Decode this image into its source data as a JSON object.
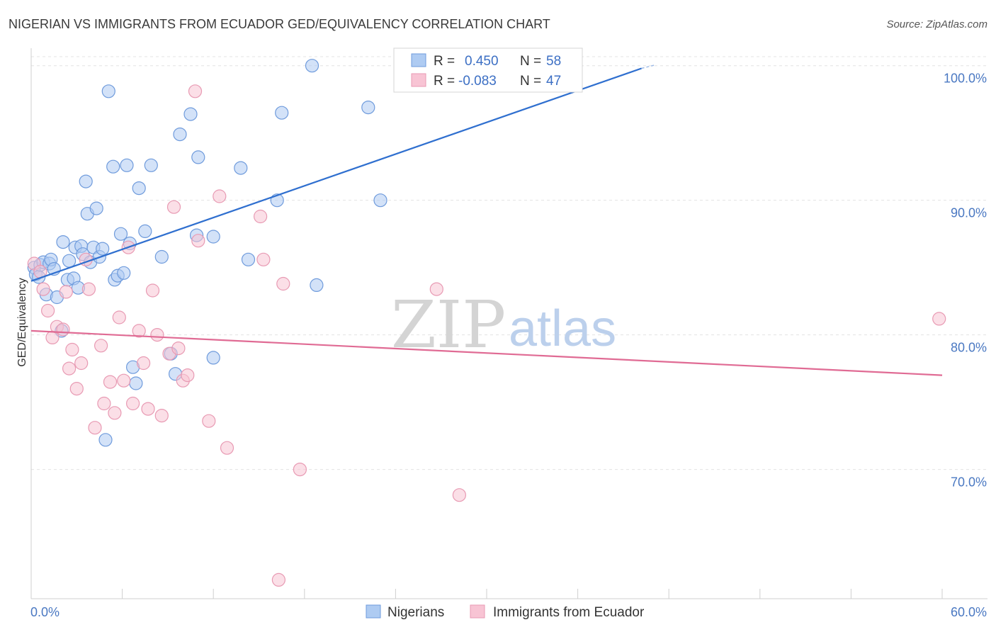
{
  "header": {
    "title": "NIGERIAN VS IMMIGRANTS FROM ECUADOR GED/EQUIVALENCY CORRELATION CHART",
    "source": "Source: ZipAtlas.com"
  },
  "watermark": {
    "zip": "ZIP",
    "atlas": "atlas"
  },
  "legend": {
    "r_label": "R =",
    "n_label": "N =",
    "nigerians": {
      "r": "0.450",
      "n": "58"
    },
    "ecuador": {
      "r": "-0.083",
      "n": "47"
    }
  },
  "colors": {
    "nigerians_fill": "#aecbf2",
    "nigerians_stroke": "#6f9bdc",
    "nigerians_line": "#2f6fcf",
    "ecuador_fill": "#f8c4d4",
    "ecuador_stroke": "#e89ab3",
    "ecuador_line": "#e06b94",
    "grid": "#e3e3e3",
    "tick_text": "#4a78c2"
  },
  "chart_data": {
    "type": "scatter",
    "title": "NIGERIAN VS IMMIGRANTS FROM ECUADOR GED/EQUIVALENCY CORRELATION CHART",
    "xlabel": "",
    "ylabel": "GED/Equivalency",
    "xlim": [
      0,
      60
    ],
    "ylim": [
      60.4,
      101.3
    ],
    "x_tick_labels": [
      "0.0%",
      "60.0%"
    ],
    "y_ticks": [
      70,
      80,
      90,
      100
    ],
    "y_tick_labels": [
      "70.0%",
      "80.0%",
      "90.0%",
      "100.0%"
    ],
    "grid": true,
    "legend_position": "top-center",
    "series": [
      {
        "name": "Nigerians",
        "r": 0.45,
        "n": 58,
        "trend": {
          "x": [
            0,
            40.2
          ],
          "y": [
            84.0,
            99.8
          ]
        },
        "points": [
          [
            0.2,
            85.0
          ],
          [
            0.3,
            84.5
          ],
          [
            0.5,
            84.3
          ],
          [
            0.6,
            85.2
          ],
          [
            0.8,
            85.4
          ],
          [
            1.0,
            83.0
          ],
          [
            1.2,
            85.3
          ],
          [
            1.3,
            85.6
          ],
          [
            1.5,
            84.9
          ],
          [
            1.7,
            82.8
          ],
          [
            2.0,
            80.3
          ],
          [
            2.1,
            86.9
          ],
          [
            2.4,
            84.1
          ],
          [
            2.5,
            85.5
          ],
          [
            2.8,
            84.2
          ],
          [
            2.9,
            86.5
          ],
          [
            3.1,
            83.5
          ],
          [
            3.3,
            86.6
          ],
          [
            3.4,
            86.0
          ],
          [
            3.6,
            91.4
          ],
          [
            3.7,
            89.0
          ],
          [
            3.9,
            85.4
          ],
          [
            4.1,
            86.5
          ],
          [
            4.3,
            89.4
          ],
          [
            4.5,
            85.8
          ],
          [
            4.7,
            86.4
          ],
          [
            4.9,
            72.2
          ],
          [
            5.1,
            98.1
          ],
          [
            5.4,
            92.5
          ],
          [
            5.5,
            84.1
          ],
          [
            5.7,
            84.4
          ],
          [
            5.9,
            87.5
          ],
          [
            6.1,
            84.6
          ],
          [
            6.3,
            92.6
          ],
          [
            6.5,
            86.8
          ],
          [
            6.7,
            77.6
          ],
          [
            6.9,
            76.4
          ],
          [
            7.1,
            90.9
          ],
          [
            7.5,
            87.7
          ],
          [
            7.9,
            92.6
          ],
          [
            8.6,
            85.8
          ],
          [
            9.2,
            78.6
          ],
          [
            9.5,
            77.1
          ],
          [
            9.8,
            94.9
          ],
          [
            10.5,
            96.4
          ],
          [
            10.9,
            87.4
          ],
          [
            11.0,
            93.2
          ],
          [
            12.0,
            87.3
          ],
          [
            12.0,
            78.3
          ],
          [
            13.8,
            92.4
          ],
          [
            14.3,
            85.6
          ],
          [
            16.2,
            90.0
          ],
          [
            16.5,
            96.5
          ],
          [
            18.8,
            83.7
          ],
          [
            18.5,
            100.0
          ],
          [
            23.0,
            90.0
          ],
          [
            35.8,
            100.0
          ],
          [
            22.2,
            96.9
          ]
        ]
      },
      {
        "name": "Immigrants from Ecuador",
        "r": -0.083,
        "n": 47,
        "trend": {
          "x": [
            0,
            60
          ],
          "y": [
            80.3,
            77.0
          ]
        },
        "points": [
          [
            0.2,
            85.3
          ],
          [
            0.6,
            84.7
          ],
          [
            0.8,
            83.4
          ],
          [
            1.1,
            81.8
          ],
          [
            1.4,
            79.8
          ],
          [
            1.7,
            80.6
          ],
          [
            2.1,
            80.4
          ],
          [
            2.3,
            83.2
          ],
          [
            2.5,
            77.5
          ],
          [
            2.7,
            78.9
          ],
          [
            3.0,
            76.0
          ],
          [
            3.3,
            77.9
          ],
          [
            3.6,
            85.6
          ],
          [
            3.8,
            83.4
          ],
          [
            4.2,
            73.1
          ],
          [
            4.6,
            79.2
          ],
          [
            4.8,
            74.9
          ],
          [
            5.2,
            76.5
          ],
          [
            5.5,
            74.2
          ],
          [
            5.8,
            81.3
          ],
          [
            6.1,
            76.6
          ],
          [
            6.4,
            86.5
          ],
          [
            6.7,
            74.9
          ],
          [
            7.1,
            80.3
          ],
          [
            7.4,
            77.9
          ],
          [
            7.7,
            74.5
          ],
          [
            8.0,
            83.3
          ],
          [
            8.3,
            80.0
          ],
          [
            8.6,
            74.0
          ],
          [
            9.1,
            78.6
          ],
          [
            9.4,
            89.5
          ],
          [
            9.7,
            79.0
          ],
          [
            10.0,
            76.6
          ],
          [
            10.3,
            77.0
          ],
          [
            10.8,
            98.1
          ],
          [
            11.0,
            87.0
          ],
          [
            11.7,
            73.6
          ],
          [
            12.4,
            90.3
          ],
          [
            12.9,
            71.6
          ],
          [
            15.1,
            88.8
          ],
          [
            15.3,
            85.6
          ],
          [
            16.3,
            61.8
          ],
          [
            16.6,
            83.8
          ],
          [
            17.7,
            70.0
          ],
          [
            26.7,
            83.4
          ],
          [
            28.2,
            68.1
          ],
          [
            59.8,
            81.2
          ]
        ]
      }
    ]
  },
  "bottom_legend": {
    "items": [
      {
        "label": "Nigerians"
      },
      {
        "label": "Immigrants from Ecuador"
      }
    ]
  }
}
